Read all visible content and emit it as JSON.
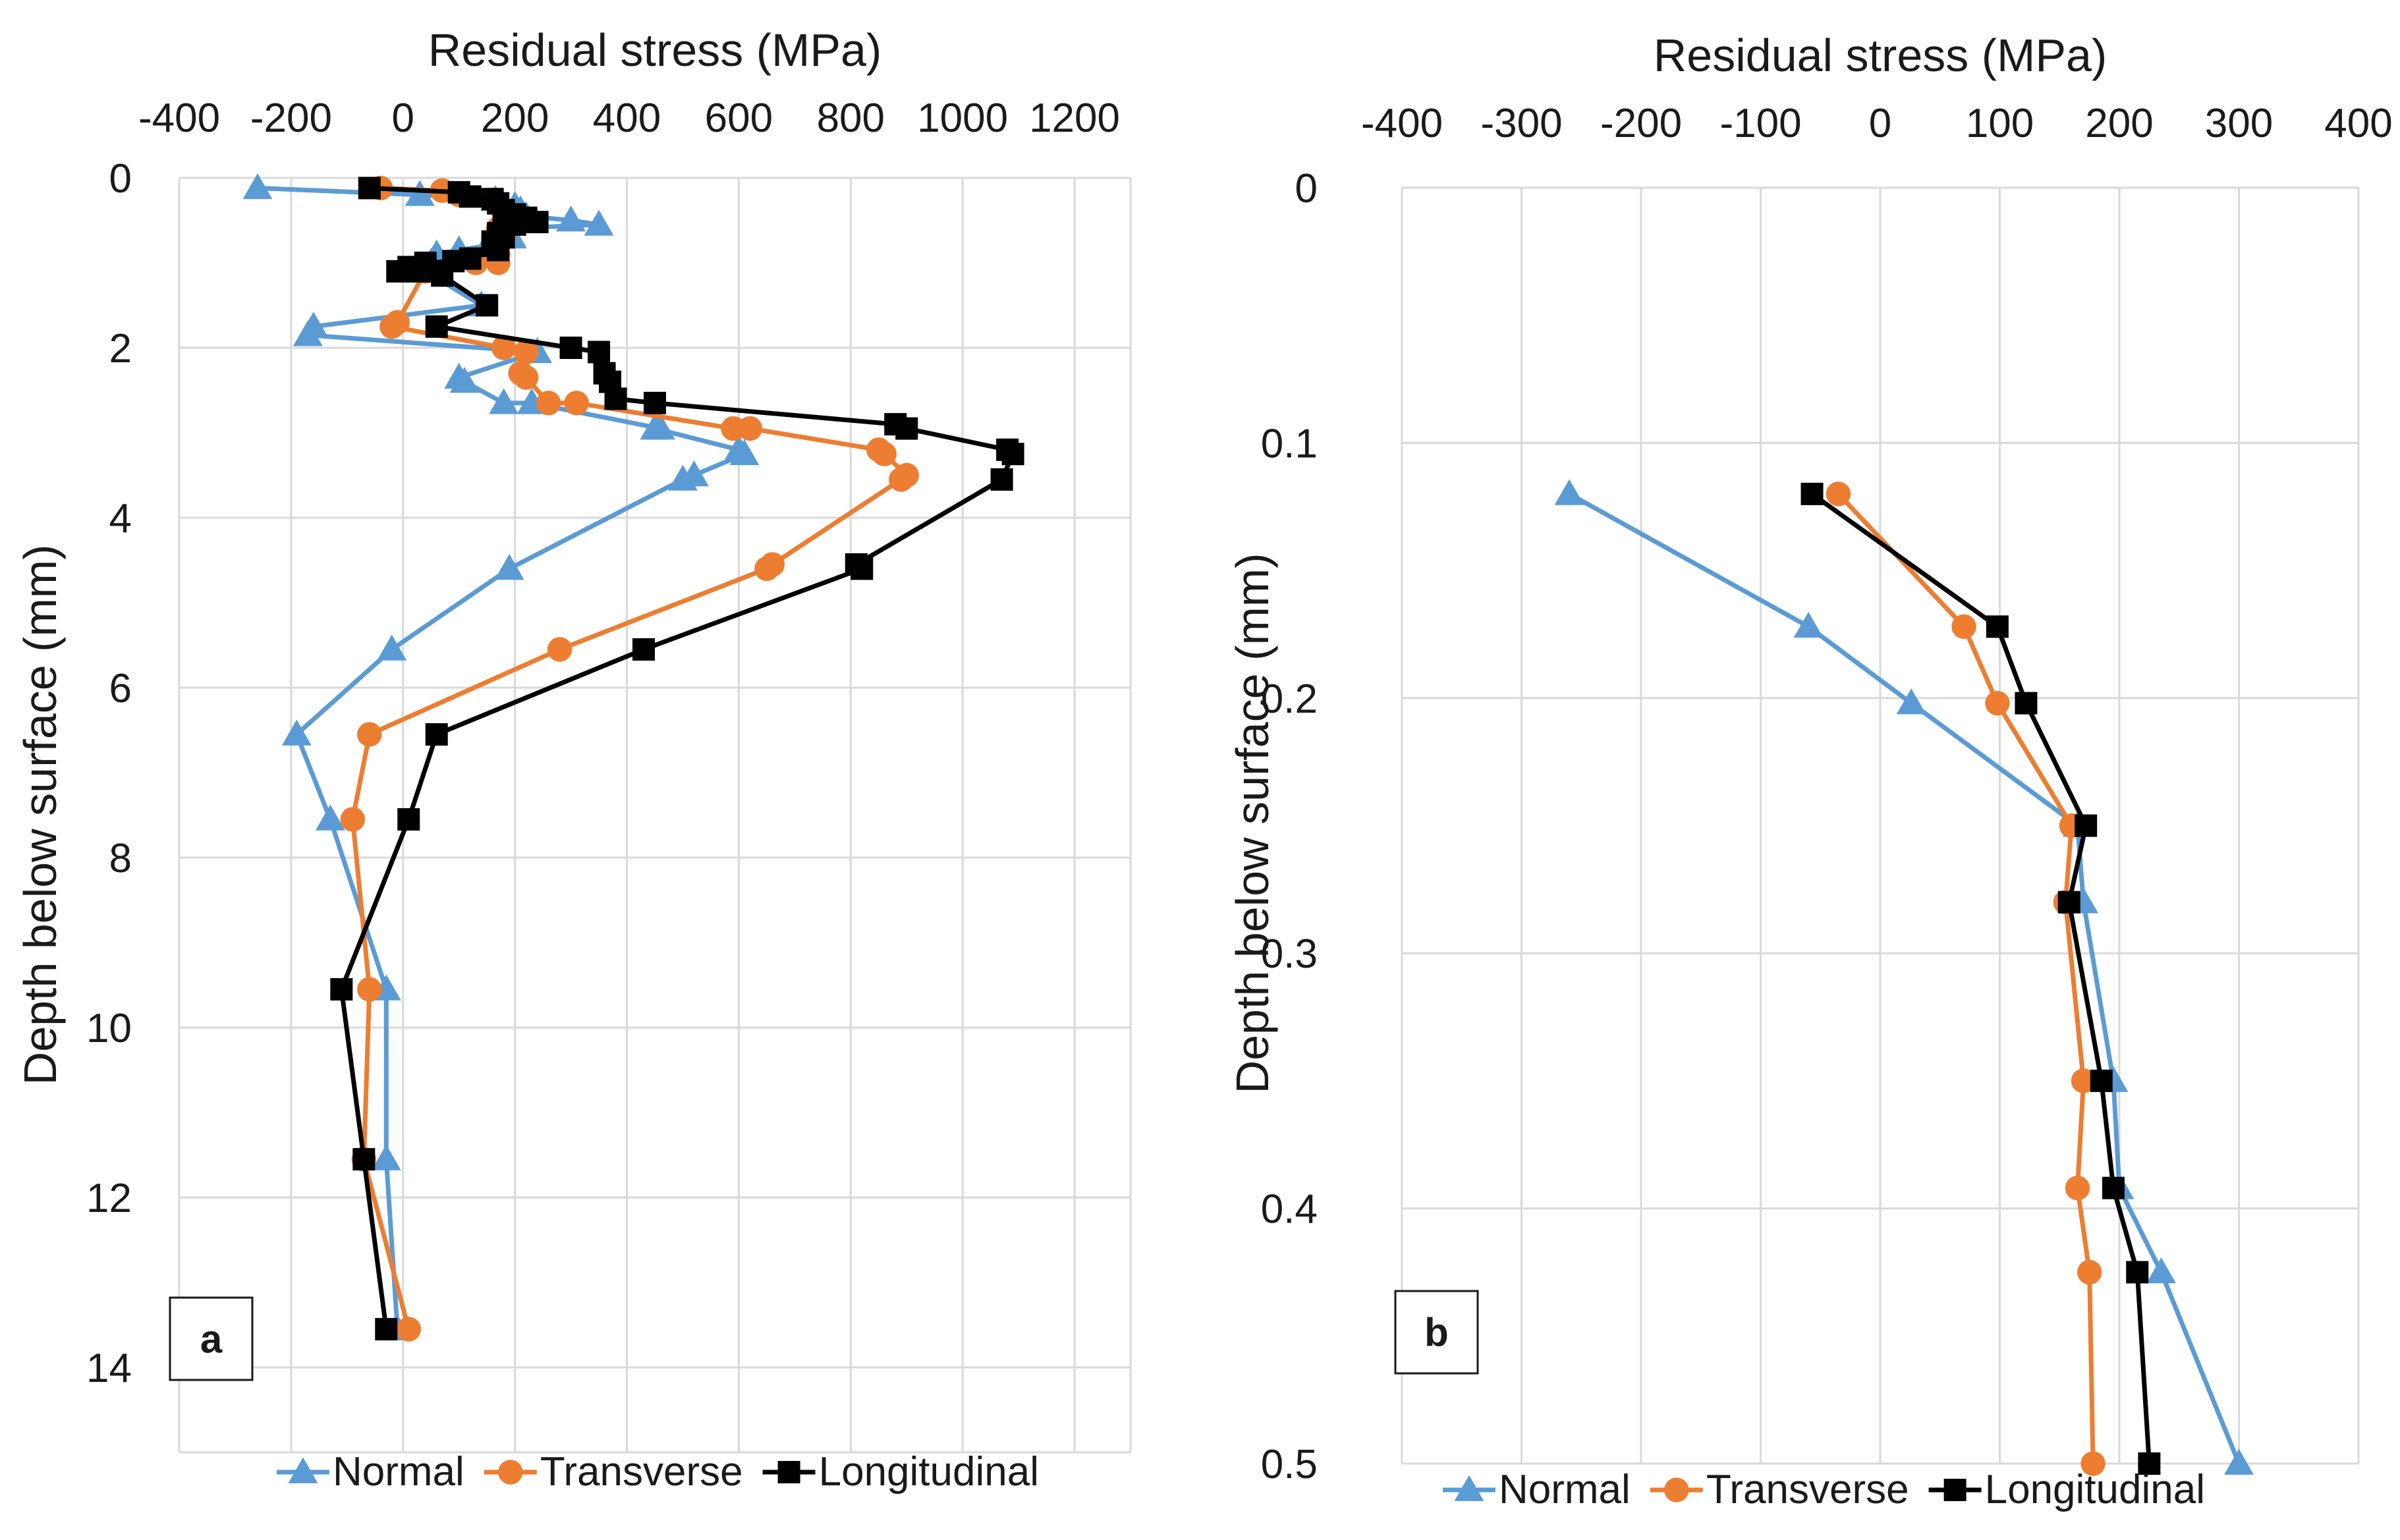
{
  "chart_data": [
    {
      "type": "line",
      "panel_label": "a",
      "xlabel": "Residual stress (MPa)",
      "ylabel": "Depth below surface (mm)",
      "xlim": [
        -400,
        1300
      ],
      "ylim": [
        15,
        0
      ],
      "xticks": [
        -400,
        -200,
        0,
        200,
        400,
        600,
        800,
        1000,
        1200
      ],
      "yticks": [
        0,
        2,
        4,
        6,
        8,
        10,
        12,
        14
      ],
      "grid": true,
      "legend": "bottom",
      "series": [
        {
          "name": "Normal",
          "color": "#5b9bd5",
          "marker": "triangle",
          "points": [
            [
              -260,
              0.12
            ],
            [
              30,
              0.2
            ],
            [
              165,
              0.26
            ],
            [
              200,
              0.33
            ],
            [
              210,
              0.38
            ],
            [
              220,
              0.45
            ],
            [
              300,
              0.5
            ],
            [
              350,
              0.55
            ],
            [
              180,
              0.6
            ],
            [
              190,
              0.65
            ],
            [
              195,
              0.7
            ],
            [
              160,
              0.75
            ],
            [
              150,
              0.8
            ],
            [
              100,
              0.85
            ],
            [
              60,
              0.9
            ],
            [
              50,
              1.0
            ],
            [
              60,
              1.05
            ],
            [
              40,
              1.1
            ],
            [
              140,
              1.5
            ],
            [
              -160,
              1.75
            ],
            [
              -170,
              1.85
            ],
            [
              240,
              2.05
            ],
            [
              100,
              2.35
            ],
            [
              110,
              2.4
            ],
            [
              180,
              2.65
            ],
            [
              230,
              2.65
            ],
            [
              460,
              2.95
            ],
            [
              450,
              2.95
            ],
            [
              600,
              3.2
            ],
            [
              610,
              3.25
            ],
            [
              520,
              3.5
            ],
            [
              500,
              3.55
            ],
            [
              190,
              4.6
            ],
            [
              -20,
              5.55
            ],
            [
              -190,
              6.55
            ],
            [
              -130,
              7.55
            ],
            [
              -30,
              9.55
            ],
            [
              -30,
              11.55
            ],
            [
              -10,
              13.55
            ]
          ]
        },
        {
          "name": "Transverse",
          "color": "#ed7d31",
          "marker": "circle",
          "points": [
            [
              -40,
              0.12
            ],
            [
              70,
              0.15
            ],
            [
              100,
              0.2
            ],
            [
              160,
              0.26
            ],
            [
              180,
              0.4
            ],
            [
              220,
              0.5
            ],
            [
              170,
              0.6
            ],
            [
              180,
              0.7
            ],
            [
              170,
              0.8
            ],
            [
              170,
              0.9
            ],
            [
              170,
              1.0
            ],
            [
              130,
              1.0
            ],
            [
              40,
              1.1
            ],
            [
              -10,
              1.7
            ],
            [
              -20,
              1.75
            ],
            [
              180,
              2.0
            ],
            [
              220,
              2.05
            ],
            [
              210,
              2.3
            ],
            [
              220,
              2.35
            ],
            [
              260,
              2.65
            ],
            [
              310,
              2.65
            ],
            [
              590,
              2.95
            ],
            [
              620,
              2.95
            ],
            [
              850,
              3.2
            ],
            [
              860,
              3.25
            ],
            [
              900,
              3.5
            ],
            [
              890,
              3.55
            ],
            [
              660,
              4.55
            ],
            [
              650,
              4.6
            ],
            [
              280,
              5.55
            ],
            [
              -60,
              6.55
            ],
            [
              -90,
              7.55
            ],
            [
              -60,
              9.55
            ],
            [
              -70,
              11.55
            ],
            [
              10,
              13.55
            ]
          ]
        },
        {
          "name": "Longitudinal",
          "color": "#000000",
          "marker": "square",
          "points": [
            [
              -60,
              0.12
            ],
            [
              100,
              0.17
            ],
            [
              120,
              0.22
            ],
            [
              160,
              0.25
            ],
            [
              170,
              0.3
            ],
            [
              180,
              0.38
            ],
            [
              200,
              0.43
            ],
            [
              220,
              0.47
            ],
            [
              240,
              0.52
            ],
            [
              200,
              0.55
            ],
            [
              180,
              0.6
            ],
            [
              170,
              0.65
            ],
            [
              180,
              0.7
            ],
            [
              160,
              0.75
            ],
            [
              160,
              0.8
            ],
            [
              170,
              0.85
            ],
            [
              120,
              0.95
            ],
            [
              90,
              0.98
            ],
            [
              40,
              1.0
            ],
            [
              10,
              1.05
            ],
            [
              20,
              1.1
            ],
            [
              -10,
              1.1
            ],
            [
              60,
              1.1
            ],
            [
              70,
              1.15
            ],
            [
              150,
              1.5
            ],
            [
              60,
              1.75
            ],
            [
              300,
              2.0
            ],
            [
              350,
              2.05
            ],
            [
              360,
              2.3
            ],
            [
              370,
              2.4
            ],
            [
              380,
              2.6
            ],
            [
              450,
              2.65
            ],
            [
              880,
              2.9
            ],
            [
              900,
              2.95
            ],
            [
              1080,
              3.2
            ],
            [
              1090,
              3.25
            ],
            [
              1070,
              3.55
            ],
            [
              810,
              4.55
            ],
            [
              820,
              4.6
            ],
            [
              430,
              5.55
            ],
            [
              60,
              6.55
            ],
            [
              10,
              7.55
            ],
            [
              -110,
              9.55
            ],
            [
              -70,
              11.55
            ],
            [
              -30,
              13.55
            ]
          ]
        }
      ]
    },
    {
      "type": "line",
      "panel_label": "b",
      "xlabel": "Residual stress (MPa)",
      "ylabel": "Depth below surface (mm)",
      "xlim": [
        -400,
        400
      ],
      "ylim": [
        0.5,
        0
      ],
      "xticks": [
        -400,
        -300,
        -200,
        -100,
        0,
        100,
        200,
        300,
        400
      ],
      "yticks": [
        0,
        0.1,
        0.2,
        0.3,
        0.4,
        0.5
      ],
      "grid": true,
      "legend": "bottom",
      "series": [
        {
          "name": "Normal",
          "color": "#5b9bd5",
          "marker": "triangle",
          "points": [
            [
              -260,
              0.12
            ],
            [
              -60,
              0.172
            ],
            [
              26,
              0.202
            ],
            [
              165,
              0.25
            ],
            [
              170,
              0.28
            ],
            [
              195,
              0.35
            ],
            [
              200,
              0.392
            ],
            [
              235,
              0.425
            ],
            [
              300,
              0.5
            ]
          ]
        },
        {
          "name": "Transverse",
          "color": "#ed7d31",
          "marker": "circle",
          "points": [
            [
              -35,
              0.12
            ],
            [
              70,
              0.172
            ],
            [
              98,
              0.202
            ],
            [
              160,
              0.25
            ],
            [
              155,
              0.28
            ],
            [
              170,
              0.35
            ],
            [
              165,
              0.392
            ],
            [
              175,
              0.425
            ],
            [
              178,
              0.5
            ]
          ]
        },
        {
          "name": "Longitudinal",
          "color": "#000000",
          "marker": "square",
          "points": [
            [
              -57,
              0.12
            ],
            [
              98,
              0.172
            ],
            [
              122,
              0.202
            ],
            [
              172,
              0.25
            ],
            [
              158,
              0.28
            ],
            [
              185,
              0.35
            ],
            [
              195,
              0.392
            ],
            [
              215,
              0.425
            ],
            [
              225,
              0.5
            ]
          ]
        }
      ]
    }
  ]
}
